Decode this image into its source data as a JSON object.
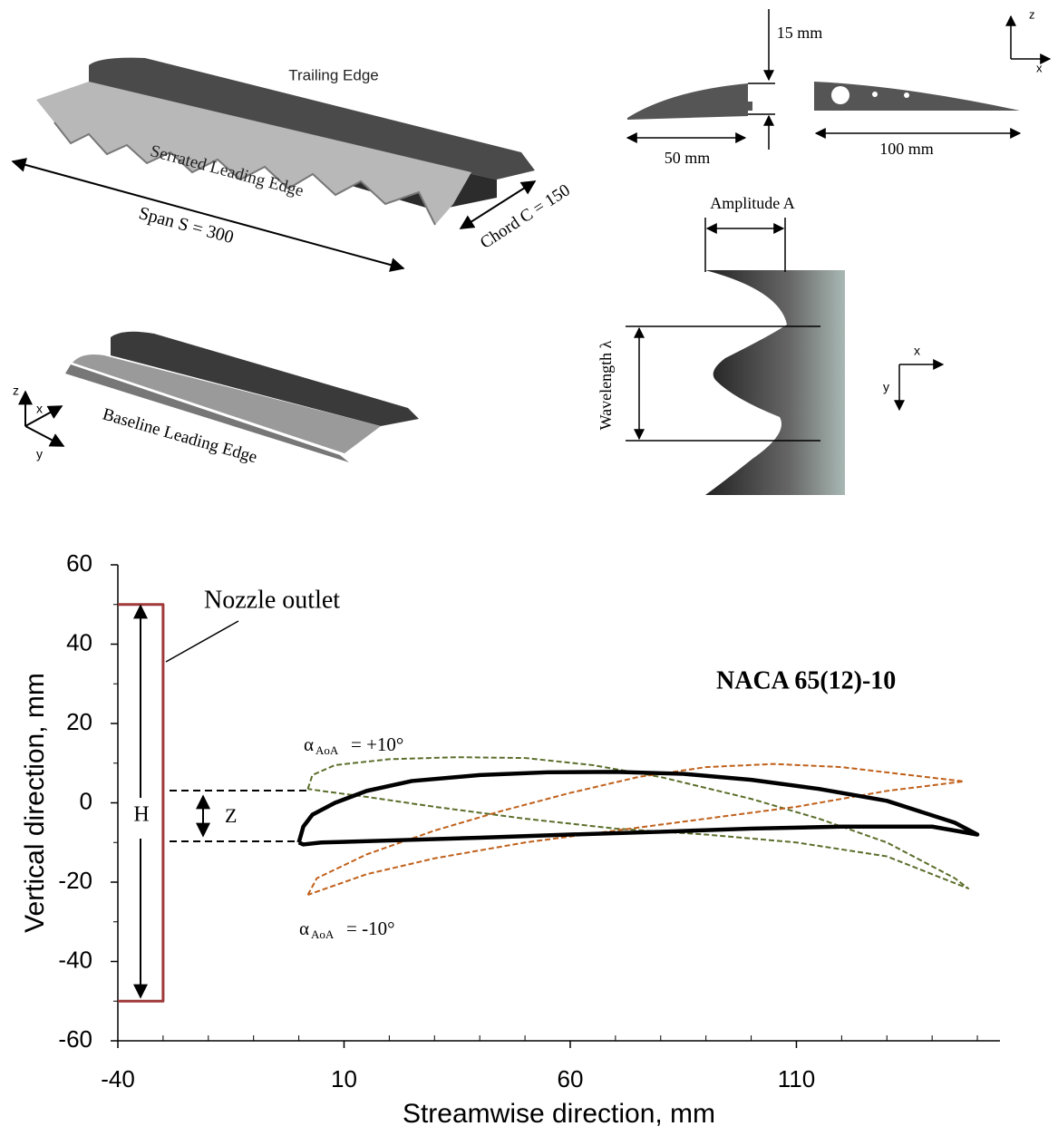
{
  "diagram": {
    "trailing_edge": "Trailing Edge",
    "serrated_leading_edge": "Serrated Leading Edge",
    "span": "Span S = 300",
    "chord": "Chord C = 150",
    "baseline_leading_edge": "Baseline Leading Edge",
    "thickness": "15 mm",
    "le_length": "50 mm",
    "main_length": "100 mm",
    "amplitude": "Amplitude A",
    "wavelength": "Wavelength λ",
    "axis_z": "z",
    "axis_x": "x",
    "axis_y": "y"
  },
  "chart_data": {
    "type": "line",
    "x_label": "Streamwise direction, mm",
    "y_label": "Vertical direction, mm",
    "xlim": [
      -40,
      155
    ],
    "ylim": [
      -60,
      60
    ],
    "xticks": [
      -40,
      10,
      60,
      110
    ],
    "yticks": [
      60,
      40,
      20,
      0,
      -20,
      -40,
      -60
    ],
    "xminor_ticks": [
      -30,
      -20,
      -10,
      0,
      20,
      30,
      40,
      50,
      70,
      80,
      90,
      100,
      120,
      130,
      140,
      150
    ],
    "yminor_ticks": [
      50,
      30,
      10,
      -10,
      -30,
      -50
    ],
    "annotations": {
      "nozzle": "Nozzle outlet",
      "airfoil": "NACA 65(12)-10",
      "height": "H",
      "offset": "Z",
      "alpha_symbol": "α",
      "alpha_subscript": "AoA",
      "alpha_plus": "= +10°",
      "alpha_minus": "= -10°"
    },
    "series": [
      {
        "color": "#a03a3a",
        "dash": false,
        "width": 3,
        "x": [
          -40,
          -30,
          -30,
          -40
        ],
        "y": [
          50,
          50,
          -50,
          -50
        ]
      },
      {
        "color": "#5a6e2a",
        "dash": true,
        "width": 2,
        "x": [
          2,
          3,
          8,
          20,
          35,
          50,
          65,
          80,
          100,
          115,
          130,
          145,
          148,
          130,
          110,
          90,
          70,
          50,
          30,
          15,
          5,
          2
        ],
        "y": [
          3.5,
          7,
          9.5,
          11,
          11.5,
          11.3,
          9.5,
          6.5,
          1,
          -4,
          -10,
          -19,
          -21.6,
          -13.5,
          -10,
          -8,
          -6.5,
          -4,
          -1,
          1.5,
          3,
          3.5
        ]
      },
      {
        "color": "#c0601a",
        "dash": true,
        "width": 2,
        "x": [
          2,
          4,
          15,
          30,
          45,
          60,
          75,
          90,
          105,
          120,
          135,
          147,
          130,
          110,
          90,
          70,
          50,
          30,
          15,
          5,
          2
        ],
        "y": [
          -23.2,
          -19,
          -13,
          -7,
          -2,
          2.5,
          6.5,
          9,
          9.8,
          9,
          7,
          5.4,
          3,
          -1,
          -4,
          -7,
          -10,
          -14,
          -18,
          -22,
          -23.2
        ]
      },
      {
        "color": "#000000",
        "dash": false,
        "width": 4.5,
        "x": [
          0,
          1,
          3,
          8,
          15,
          25,
          40,
          55,
          70,
          85,
          100,
          115,
          130,
          145,
          150,
          140,
          120,
          100,
          80,
          60,
          40,
          20,
          5,
          1,
          0
        ],
        "y": [
          -10,
          -6,
          -3,
          0,
          3,
          5.5,
          7,
          7.7,
          7.8,
          7.3,
          5.8,
          3.5,
          0.5,
          -5,
          -8,
          -6,
          -6,
          -6.5,
          -7.3,
          -8,
          -8.8,
          -9.5,
          -10,
          -10.5,
          -10
        ]
      }
    ]
  }
}
